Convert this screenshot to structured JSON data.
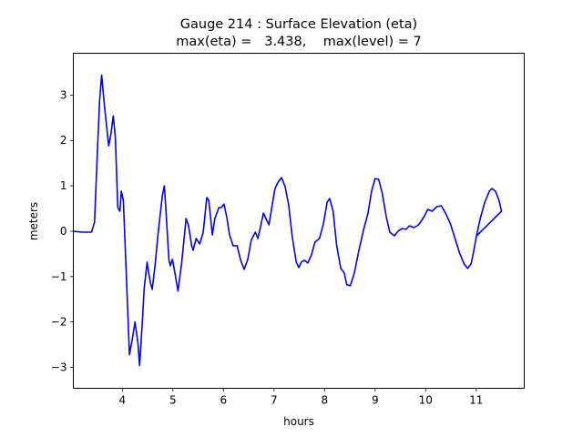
{
  "chart_data": {
    "type": "line",
    "title": "Gauge 214 : Surface Elevation (eta)",
    "subtitle": "max(eta) =   3.438,    max(level) = 7",
    "xlabel": "hours",
    "ylabel": "meters",
    "xlim": [
      3.03,
      11.95
    ],
    "ylim": [
      -3.46,
      3.92
    ],
    "xticks": [
      4,
      5,
      6,
      7,
      8,
      9,
      10,
      11
    ],
    "xtick_labels": [
      "4",
      "5",
      "6",
      "7",
      "8",
      "9",
      "10",
      "11"
    ],
    "yticks": [
      -3,
      -2,
      -1,
      0,
      1,
      2,
      3
    ],
    "ytick_labels": [
      "−3",
      "−2",
      "−1",
      "0",
      "1",
      "2",
      "3"
    ],
    "grid": false,
    "series": [
      {
        "name": "eta",
        "color": "#0000ff",
        "x": [
          3.03,
          3.2,
          3.39,
          3.45,
          3.5,
          3.55,
          3.59,
          3.64,
          3.73,
          3.77,
          3.82,
          3.86,
          3.91,
          3.95,
          3.98,
          4.02,
          4.07,
          4.14,
          4.2,
          4.25,
          4.31,
          4.34,
          4.4,
          4.43,
          4.49,
          4.52,
          4.56,
          4.59,
          4.65,
          4.7,
          4.74,
          4.79,
          4.83,
          4.86,
          4.92,
          4.95,
          4.99,
          5.04,
          5.1,
          5.17,
          5.26,
          5.31,
          5.37,
          5.4,
          5.46,
          5.53,
          5.6,
          5.67,
          5.71,
          5.78,
          5.83,
          5.91,
          5.96,
          6.01,
          6.07,
          6.12,
          6.19,
          6.27,
          6.34,
          6.41,
          6.48,
          6.55,
          6.63,
          6.68,
          6.73,
          6.79,
          6.84,
          6.9,
          6.95,
          7.02,
          7.08,
          7.15,
          7.22,
          7.29,
          7.36,
          7.44,
          7.49,
          7.54,
          7.6,
          7.67,
          7.74,
          7.81,
          7.9,
          7.98,
          8.05,
          8.1,
          8.17,
          8.24,
          8.32,
          8.39,
          8.44,
          8.51,
          8.59,
          8.68,
          8.77,
          8.86,
          8.93,
          9.0,
          9.07,
          9.14,
          9.22,
          9.29,
          9.38,
          9.47,
          9.54,
          9.61,
          9.68,
          9.77,
          9.86,
          9.97,
          10.04,
          10.13,
          10.22,
          10.31,
          10.4,
          10.49,
          10.58,
          10.67,
          10.76,
          10.83,
          10.9,
          10.95,
          11.01,
          11.08,
          11.17,
          11.26,
          11.31,
          11.38,
          11.45,
          11.5,
          11.01
        ],
        "y": [
          0.0,
          -0.02,
          -0.02,
          0.2,
          1.6,
          2.9,
          3.44,
          2.82,
          1.88,
          2.12,
          2.54,
          2.08,
          0.52,
          0.44,
          0.88,
          0.68,
          -0.72,
          -2.72,
          -2.36,
          -2.0,
          -2.48,
          -2.96,
          -1.92,
          -1.28,
          -0.68,
          -0.92,
          -1.16,
          -1.28,
          -0.72,
          -0.12,
          0.28,
          0.78,
          1.0,
          0.48,
          -0.62,
          -0.76,
          -0.62,
          -0.92,
          -1.32,
          -0.72,
          0.28,
          0.12,
          -0.32,
          -0.42,
          -0.16,
          -0.28,
          -0.02,
          0.74,
          0.68,
          -0.08,
          0.28,
          0.52,
          0.52,
          0.6,
          0.28,
          -0.08,
          -0.32,
          -0.32,
          -0.64,
          -0.84,
          -0.62,
          -0.2,
          -0.02,
          -0.16,
          0.08,
          0.4,
          0.28,
          0.14,
          0.48,
          0.94,
          1.08,
          1.18,
          0.98,
          0.58,
          -0.12,
          -0.68,
          -0.8,
          -0.68,
          -0.64,
          -0.7,
          -0.52,
          -0.24,
          -0.16,
          0.18,
          0.64,
          0.72,
          0.44,
          -0.32,
          -0.82,
          -0.92,
          -1.18,
          -1.2,
          -0.92,
          -0.42,
          0.02,
          0.4,
          0.88,
          1.16,
          1.14,
          0.84,
          0.32,
          -0.02,
          -0.1,
          0.02,
          0.06,
          0.04,
          0.12,
          0.08,
          0.14,
          0.32,
          0.48,
          0.44,
          0.54,
          0.56,
          0.38,
          0.16,
          -0.16,
          -0.48,
          -0.72,
          -0.82,
          -0.72,
          -0.44,
          -0.08,
          0.28,
          0.64,
          0.88,
          0.94,
          0.88,
          0.68,
          0.44,
          -0.1
        ]
      }
    ]
  }
}
